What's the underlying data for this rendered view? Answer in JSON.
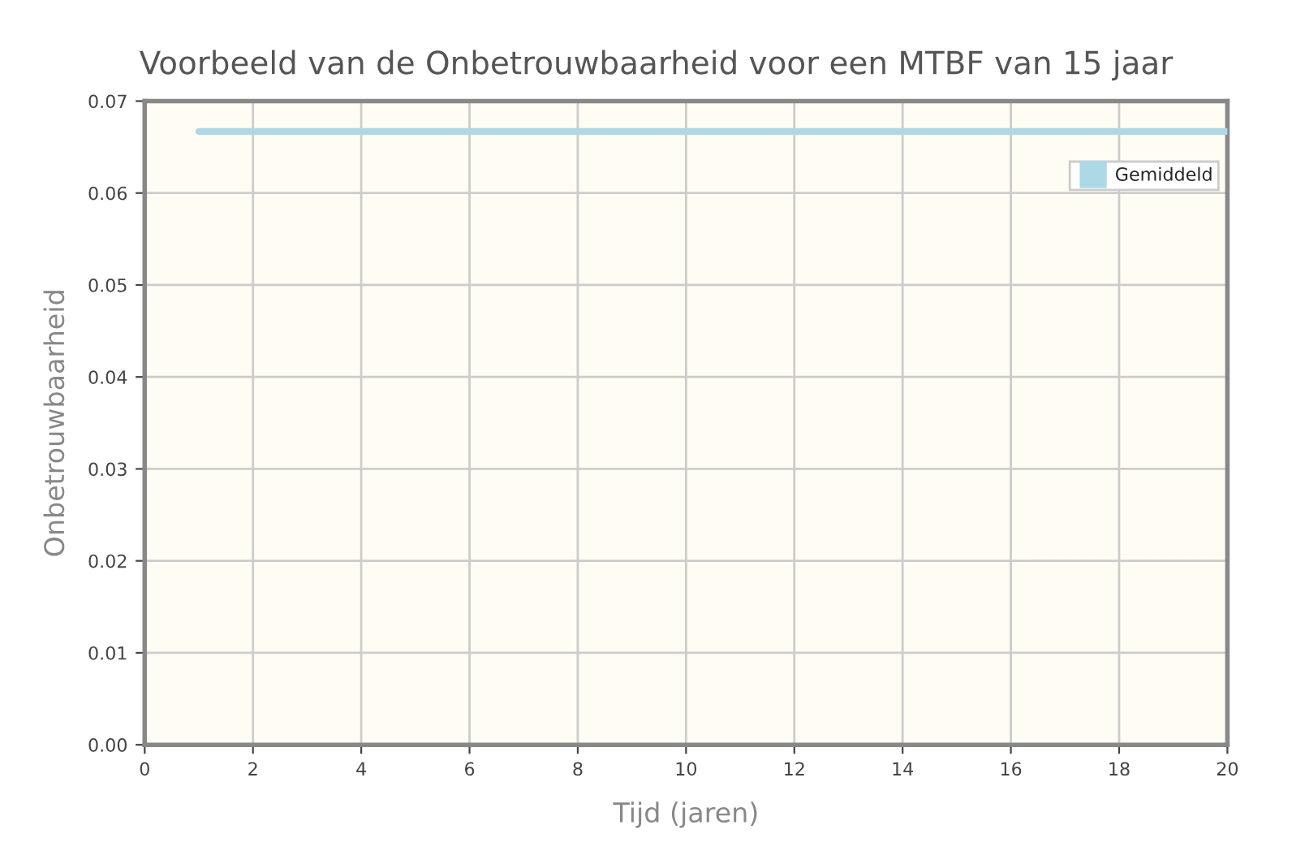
{
  "chart_data": {
    "type": "line",
    "title": "Voorbeeld van de Onbetrouwbaarheid voor een MTBF van 15 jaar",
    "xlabel": "Tijd (jaren)",
    "ylabel": "Onbetrouwbaarheid",
    "series": [
      {
        "name": "Gemiddeld",
        "color": "#add8e6",
        "x": [
          1,
          20
        ],
        "values": [
          0.0667,
          0.0667
        ]
      }
    ],
    "xlim": [
      0,
      20
    ],
    "xticks": [
      0,
      2,
      4,
      6,
      8,
      10,
      12,
      14,
      16,
      18,
      20
    ],
    "ylim": [
      0,
      0.07
    ],
    "yticks": [
      {
        "value": 0,
        "label": "0.00"
      },
      {
        "value": 0.01,
        "label": "0.01"
      },
      {
        "value": 0.02,
        "label": "0.02"
      },
      {
        "value": 0.03,
        "label": "0.03"
      },
      {
        "value": 0.04,
        "label": "0.04"
      },
      {
        "value": 0.05,
        "label": "0.05"
      },
      {
        "value": 0.06,
        "label": "0.06"
      },
      {
        "value": 0.07,
        "label": "0.07"
      }
    ],
    "grid": true,
    "legend": "top right",
    "marker": "none",
    "line_style": "solid"
  }
}
